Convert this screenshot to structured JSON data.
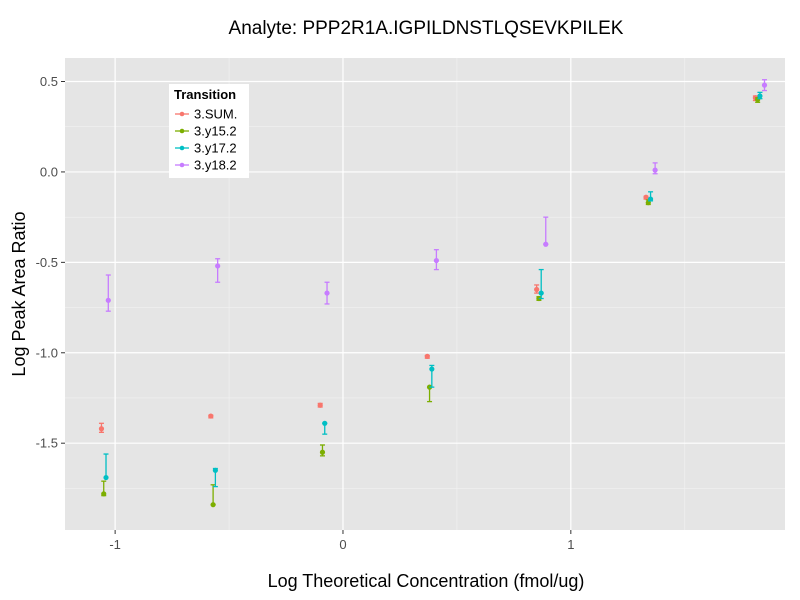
{
  "chart_data": {
    "type": "scatter",
    "title": "Analyte: PPP2R1A.IGPILDNSTLQSEVKPILEK",
    "xlabel": "Log Theoretical Concentration (fmol/ug)",
    "ylabel": "Log Peak Area Ratio",
    "xlim": [
      -1.22,
      1.94
    ],
    "ylim": [
      -1.98,
      0.63
    ],
    "x_ticks": [
      -1,
      0,
      1
    ],
    "x_tick_labels": [
      "-1",
      "0",
      "1"
    ],
    "y_ticks": [
      -1.5,
      -1.0,
      -0.5,
      0.0,
      0.5
    ],
    "y_tick_labels": [
      "-1.5",
      "-1.0",
      "-0.5",
      "0.0",
      "0.5"
    ],
    "grid": true,
    "legend": {
      "title": "Transition",
      "position": "top-left"
    },
    "series": [
      {
        "name": "3.SUM.",
        "color": "#F8766D",
        "points": [
          {
            "x": -1.06,
            "y": -1.42,
            "ymin": -1.44,
            "ymax": -1.39
          },
          {
            "x": -0.58,
            "y": -1.35,
            "ymin": -1.36,
            "ymax": -1.345
          },
          {
            "x": -0.1,
            "y": -1.29,
            "ymin": -1.3,
            "ymax": -1.28
          },
          {
            "x": 0.37,
            "y": -1.02,
            "ymin": -1.03,
            "ymax": -1.015
          },
          {
            "x": 0.85,
            "y": -0.65,
            "ymin": -0.67,
            "ymax": -0.625
          },
          {
            "x": 1.33,
            "y": -0.14,
            "ymin": -0.15,
            "ymax": -0.135
          },
          {
            "x": 1.81,
            "y": 0.41,
            "ymin": 0.395,
            "ymax": 0.42
          }
        ]
      },
      {
        "name": "3.y15.2",
        "color": "#7CAE00",
        "points": [
          {
            "x": -1.05,
            "y": -1.78,
            "ymin": -1.79,
            "ymax": -1.71
          },
          {
            "x": -0.57,
            "y": -1.84,
            "ymin": -1.84,
            "ymax": -1.73
          },
          {
            "x": -0.09,
            "y": -1.55,
            "ymin": -1.57,
            "ymax": -1.51
          },
          {
            "x": 0.38,
            "y": -1.19,
            "ymin": -1.27,
            "ymax": -1.19
          },
          {
            "x": 0.86,
            "y": -0.7,
            "ymin": -0.71,
            "ymax": -0.69
          },
          {
            "x": 1.34,
            "y": -0.17,
            "ymin": -0.18,
            "ymax": -0.155
          },
          {
            "x": 1.82,
            "y": 0.4,
            "ymin": 0.385,
            "ymax": 0.41
          }
        ]
      },
      {
        "name": "3.y17.2",
        "color": "#00BFC4",
        "points": [
          {
            "x": -1.04,
            "y": -1.69,
            "ymin": -1.69,
            "ymax": -1.56
          },
          {
            "x": -0.56,
            "y": -1.65,
            "ymin": -1.74,
            "ymax": -1.64
          },
          {
            "x": -0.08,
            "y": -1.39,
            "ymin": -1.45,
            "ymax": -1.39
          },
          {
            "x": 0.39,
            "y": -1.09,
            "ymin": -1.19,
            "ymax": -1.07
          },
          {
            "x": 0.87,
            "y": -0.67,
            "ymin": -0.7,
            "ymax": -0.54
          },
          {
            "x": 1.35,
            "y": -0.15,
            "ymin": -0.16,
            "ymax": -0.11
          },
          {
            "x": 1.83,
            "y": 0.42,
            "ymin": 0.405,
            "ymax": 0.44
          }
        ]
      },
      {
        "name": "3.y18.2",
        "color": "#C77CFF",
        "points": [
          {
            "x": -1.03,
            "y": -0.71,
            "ymin": -0.77,
            "ymax": -0.57
          },
          {
            "x": -0.55,
            "y": -0.52,
            "ymin": -0.61,
            "ymax": -0.48
          },
          {
            "x": -0.07,
            "y": -0.67,
            "ymin": -0.73,
            "ymax": -0.61
          },
          {
            "x": 0.41,
            "y": -0.49,
            "ymin": -0.54,
            "ymax": -0.43
          },
          {
            "x": 0.89,
            "y": -0.4,
            "ymin": -0.4,
            "ymax": -0.25
          },
          {
            "x": 1.37,
            "y": 0.01,
            "ymin": -0.01,
            "ymax": 0.05
          },
          {
            "x": 1.85,
            "y": 0.48,
            "ymin": 0.45,
            "ymax": 0.51
          }
        ]
      }
    ]
  }
}
